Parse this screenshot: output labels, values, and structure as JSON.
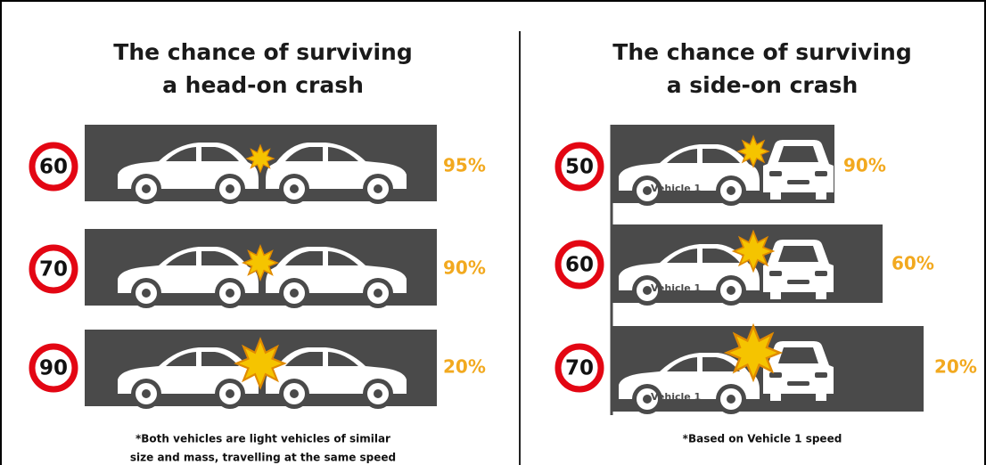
{
  "panels": [
    {
      "title_lines": [
        "The chance of surviving",
        "a head-on crash"
      ],
      "rows": [
        {
          "speed": "60",
          "survival": "95%"
        },
        {
          "speed": "70",
          "survival": "90%"
        },
        {
          "speed": "90",
          "survival": "20%"
        }
      ],
      "footnote_lines": [
        "*Both vehicles are light vehicles of similar",
        "size and mass, travelling at the same speed"
      ]
    },
    {
      "title_lines": [
        "The chance of surviving",
        "a side-on crash"
      ],
      "vehicle_label": "Vehicle 1",
      "rows": [
        {
          "speed": "50",
          "survival": "90%"
        },
        {
          "speed": "60",
          "survival": "60%"
        },
        {
          "speed": "70",
          "survival": "20%"
        }
      ],
      "footnote_lines": [
        "*Based on Vehicle 1 speed"
      ]
    }
  ]
}
